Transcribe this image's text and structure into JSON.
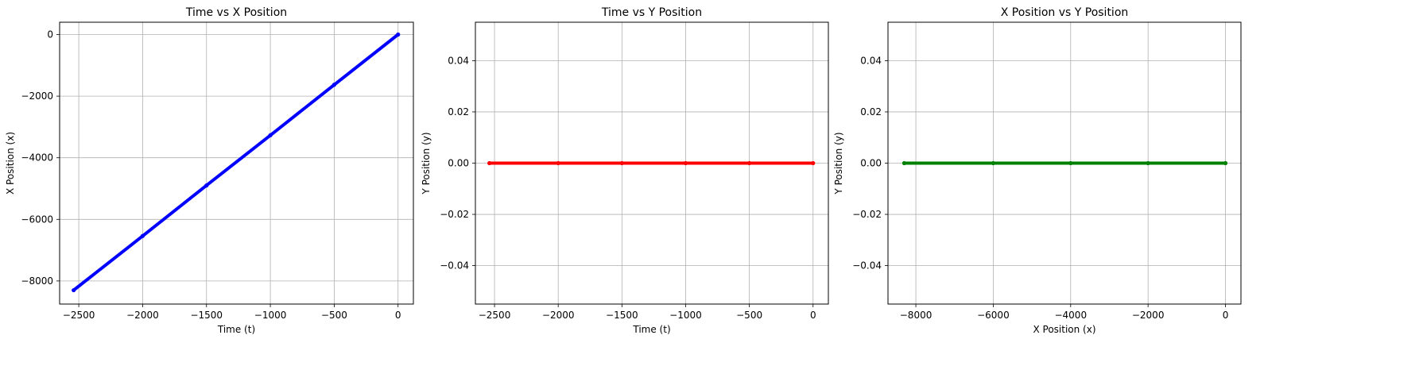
{
  "chart_data": [
    {
      "type": "line",
      "title": "Time vs X Position",
      "xlabel": "Time (t)",
      "ylabel": "X Position (x)",
      "xlim": [
        -2650,
        120
      ],
      "ylim": [
        -8750,
        400
      ],
      "xticks": [
        -2500,
        -2000,
        -1500,
        -1000,
        -500,
        0
      ],
      "yticks": [
        -8000,
        -6000,
        -4000,
        -2000,
        0
      ],
      "grid": true,
      "series": [
        {
          "color": "#0000ff",
          "x": [
            -2540,
            -2000,
            -1500,
            -1000,
            -500,
            0
          ],
          "y": [
            -8300,
            -6540,
            -4900,
            -3270,
            -1630,
            0
          ]
        }
      ]
    },
    {
      "type": "line",
      "title": "Time vs Y Position",
      "xlabel": "Time (t)",
      "ylabel": "Y Position (y)",
      "xlim": [
        -2650,
        120
      ],
      "ylim": [
        -0.055,
        0.055
      ],
      "xticks": [
        -2500,
        -2000,
        -1500,
        -1000,
        -500,
        0
      ],
      "yticks": [
        -0.04,
        -0.02,
        0.0,
        0.02,
        0.04
      ],
      "ytick_labels": [
        "−0.04",
        "−0.02",
        "0.00",
        "0.02",
        "0.04"
      ],
      "grid": true,
      "series": [
        {
          "color": "#ff0000",
          "x": [
            -2540,
            -2000,
            -1500,
            -1000,
            -500,
            0
          ],
          "y": [
            0,
            0,
            0,
            0,
            0,
            0
          ]
        }
      ]
    },
    {
      "type": "line",
      "title": "X Position vs Y Position",
      "xlabel": "X Position (x)",
      "ylabel": "Y Position (y)",
      "xlim": [
        -8720,
        400
      ],
      "ylim": [
        -0.055,
        0.055
      ],
      "xticks": [
        -8000,
        -6000,
        -4000,
        -2000,
        0
      ],
      "yticks": [
        -0.04,
        -0.02,
        0.0,
        0.02,
        0.04
      ],
      "ytick_labels": [
        "−0.04",
        "−0.02",
        "0.00",
        "0.02",
        "0.04"
      ],
      "grid": true,
      "series": [
        {
          "color": "#008000",
          "x": [
            -8300,
            -6000,
            -4000,
            -2000,
            0
          ],
          "y": [
            0,
            0,
            0,
            0,
            0
          ]
        }
      ]
    }
  ]
}
